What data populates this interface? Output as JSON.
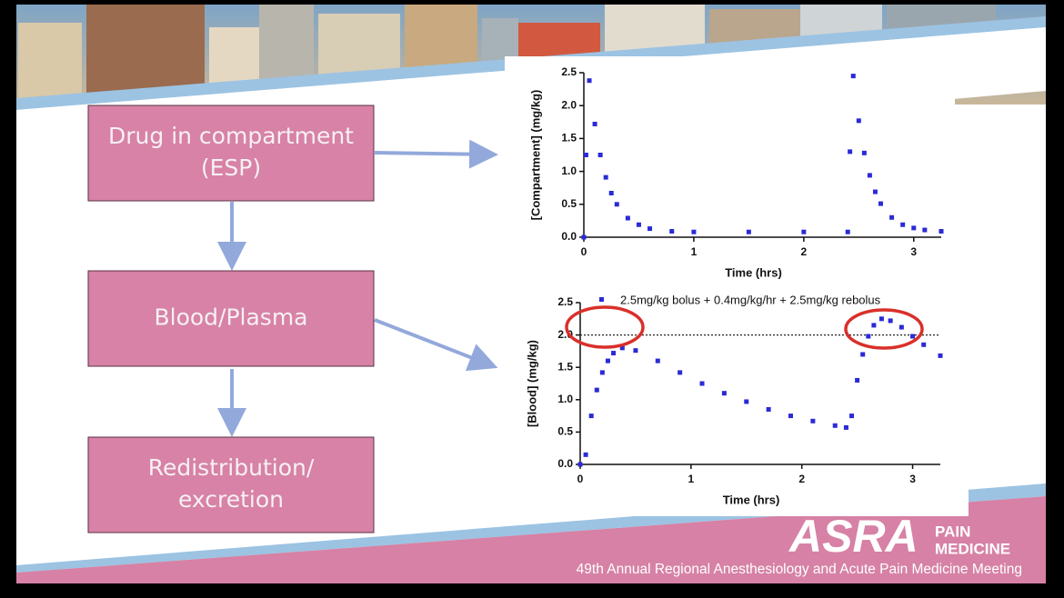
{
  "diagram": {
    "boxes": [
      {
        "lines": [
          "Drug in compartment",
          "(ESP)"
        ]
      },
      {
        "lines": [
          "Blood/Plasma"
        ]
      },
      {
        "lines": [
          "Redistribution/",
          "excretion"
        ]
      }
    ]
  },
  "chart_data": [
    {
      "type": "scatter",
      "y_label": "[Compartment] (mg/kg)",
      "x_label": "Time (hrs)",
      "xlim": [
        0,
        3.25
      ],
      "ylim": [
        0,
        2.5
      ],
      "xticks": [
        0,
        1,
        2,
        3
      ],
      "yticks": [
        {
          "value": 0,
          "label": "0.0"
        },
        0.5,
        {
          "value": 1,
          "label": "1.0"
        },
        1.5,
        {
          "value": 2,
          "label": "2.0"
        },
        2.5
      ],
      "x": [
        0,
        0.02,
        0.05,
        0.1,
        0.15,
        0.2,
        0.25,
        0.3,
        0.4,
        0.5,
        0.6,
        0.8,
        1.0,
        1.5,
        2.0,
        2.4,
        2.42,
        2.45,
        2.5,
        2.55,
        2.6,
        2.65,
        2.7,
        2.8,
        2.9,
        3.0,
        3.1,
        3.25
      ],
      "series": [
        {
          "color": "#2a2ad6",
          "values": [
            0,
            1.25,
            2.38,
            1.72,
            1.25,
            0.91,
            0.67,
            0.5,
            0.29,
            0.19,
            0.13,
            0.09,
            0.08,
            0.08,
            0.08,
            0.08,
            1.3,
            2.45,
            1.77,
            1.28,
            0.94,
            0.69,
            0.51,
            0.3,
            0.19,
            0.14,
            0.11,
            0.09
          ]
        }
      ]
    },
    {
      "type": "scatter",
      "y_label": "[Blood] (mg/kg)",
      "x_label": "Time (hrs)",
      "xlim": [
        0,
        3.25
      ],
      "ylim": [
        0,
        2.5
      ],
      "xticks": [
        0,
        1,
        2,
        3
      ],
      "yticks": [
        {
          "value": 0,
          "label": "0.0"
        },
        0.5,
        {
          "value": 1,
          "label": "1.0"
        },
        1.5,
        {
          "value": 2,
          "label": "2.0"
        },
        2.5
      ],
      "reference_line": 2,
      "x": [
        0,
        0.05,
        0.1,
        0.15,
        0.2,
        0.25,
        0.3,
        0.38,
        0.5,
        0.7,
        0.9,
        1.1,
        1.3,
        1.5,
        1.7,
        1.9,
        2.1,
        2.3,
        2.4,
        2.45,
        2.5,
        2.55,
        2.6,
        2.65,
        2.72,
        2.8,
        2.9,
        3.0,
        3.1,
        3.25
      ],
      "series": [
        {
          "name": "2.5mg/kg bolus + 0.4mg/kg/hr + 2.5mg/kg rebolus",
          "color": "#2a2ad6",
          "values": [
            0,
            0.15,
            0.75,
            1.15,
            1.42,
            1.6,
            1.72,
            1.8,
            1.76,
            1.6,
            1.42,
            1.25,
            1.1,
            0.97,
            0.85,
            0.75,
            0.67,
            0.6,
            0.57,
            0.75,
            1.3,
            1.7,
            1.98,
            2.15,
            2.25,
            2.22,
            2.12,
            1.98,
            1.85,
            1.68
          ]
        }
      ]
    }
  ],
  "footer": {
    "logo": "ASRA",
    "logo_sub": [
      "PAIN",
      "MEDICINE"
    ],
    "meeting": "49th Annual Regional Anesthesiology and Acute Pain Medicine Meeting"
  }
}
